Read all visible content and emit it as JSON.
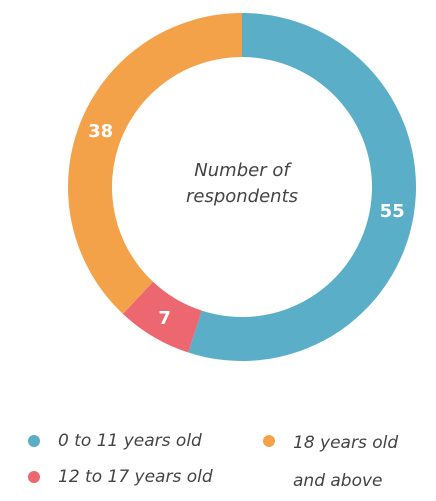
{
  "chart_data": {
    "type": "pie",
    "categories": [
      "0 to 11 years old",
      "12 to 17 years old",
      "18 years old and above"
    ],
    "values": [
      55,
      7,
      38
    ],
    "colors": [
      "#5aaec7",
      "#ec6770",
      "#f4a24a"
    ],
    "center_label": [
      "Number of",
      "respondents"
    ],
    "donut": true
  }
}
